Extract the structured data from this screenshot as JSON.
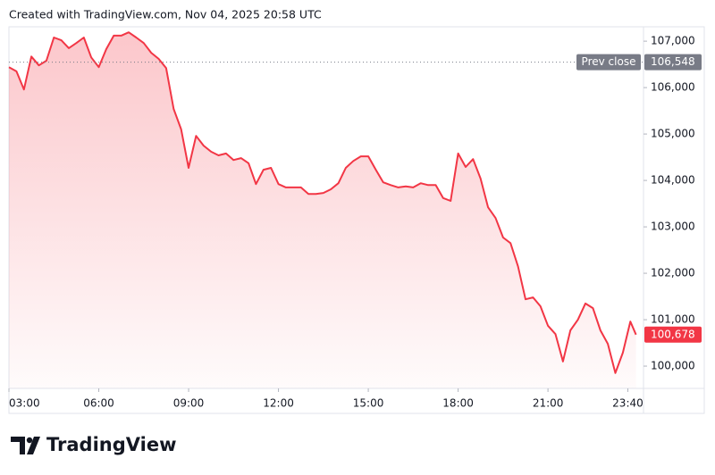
{
  "chart_data": {
    "type": "area",
    "header": "Created with TradingView.com, Nov 04, 2025 20:58 UTC",
    "brand": "TradingView",
    "color": "#f23645",
    "x": [
      3,
      3.25,
      3.5,
      3.75,
      4,
      4.25,
      4.5,
      4.75,
      5,
      5.25,
      5.5,
      5.75,
      6,
      6.25,
      6.5,
      6.75,
      7,
      7.25,
      7.5,
      7.75,
      8,
      8.25,
      8.5,
      8.75,
      9,
      9.25,
      9.5,
      9.75,
      10,
      10.25,
      10.5,
      10.75,
      11,
      11.25,
      11.5,
      11.75,
      12,
      12.25,
      12.5,
      12.75,
      13,
      13.25,
      13.5,
      13.75,
      14,
      14.25,
      14.5,
      14.75,
      15,
      15.25,
      15.5,
      15.75,
      16,
      16.25,
      16.5,
      16.75,
      17,
      17.25,
      17.5,
      17.75,
      18,
      18.25,
      18.5,
      18.75,
      19,
      19.25,
      19.5,
      19.75,
      20,
      20.25,
      20.5,
      20.75,
      21,
      21.25,
      21.5,
      21.75,
      22,
      22.25,
      22.5,
      22.75,
      23,
      23.25,
      23.5,
      23.75,
      23.94
    ],
    "values": [
      106440,
      106350,
      105960,
      106670,
      106480,
      106580,
      107080,
      107020,
      106850,
      106960,
      107080,
      106650,
      106440,
      106830,
      107120,
      107120,
      107190,
      107080,
      106960,
      106750,
      106620,
      106420,
      105540,
      105100,
      104270,
      104960,
      104750,
      104620,
      104540,
      104580,
      104440,
      104480,
      104370,
      103920,
      104230,
      104270,
      103920,
      103850,
      103850,
      103850,
      103710,
      103710,
      103730,
      103810,
      103940,
      104270,
      104420,
      104520,
      104520,
      104230,
      103960,
      103900,
      103850,
      103870,
      103850,
      103940,
      103900,
      103900,
      103620,
      103560,
      104580,
      104290,
      104460,
      104040,
      103420,
      103190,
      102770,
      102650,
      102150,
      101440,
      101480,
      101290,
      100870,
      100690,
      100100,
      100770,
      101000,
      101350,
      101250,
      100770,
      100480,
      99850,
      100290,
      100960,
      100678
    ],
    "last_label": "100,678",
    "prev_close": 106548,
    "prev_close_title": "Prev close",
    "prev_close_label": "106,548",
    "xlim": [
      3,
      24.19
    ],
    "ylim": [
      99520,
      107310
    ],
    "xticks": [
      {
        "value": 3,
        "label": "03:00"
      },
      {
        "value": 6,
        "label": "06:00"
      },
      {
        "value": 9,
        "label": "09:00"
      },
      {
        "value": 12,
        "label": "12:00"
      },
      {
        "value": 15,
        "label": "15:00"
      },
      {
        "value": 18,
        "label": "18:00"
      },
      {
        "value": 21,
        "label": "21:00"
      },
      {
        "value": 23.667,
        "label": "23:40"
      }
    ],
    "yticks": [
      {
        "value": 100000,
        "label": "100,000"
      },
      {
        "value": 101000,
        "label": "101,000"
      },
      {
        "value": 102000,
        "label": "102,000"
      },
      {
        "value": 103000,
        "label": "103,000"
      },
      {
        "value": 104000,
        "label": "104,000"
      },
      {
        "value": 105000,
        "label": "105,000"
      },
      {
        "value": 106000,
        "label": "106,000"
      },
      {
        "value": 107000,
        "label": "107,000"
      }
    ],
    "grid": false
  }
}
